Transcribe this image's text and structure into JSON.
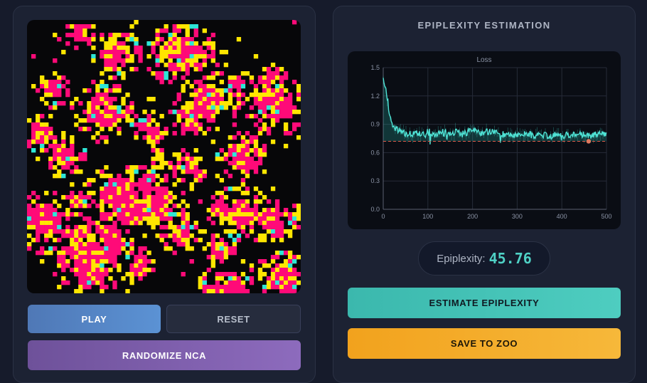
{
  "controls": {
    "play_label": "PLAY",
    "reset_label": "RESET",
    "randomize_label": "RANDOMIZE NCA"
  },
  "grid": {
    "colors": {
      "empty": "#070709",
      "state_a": "#ff0a78",
      "state_b": "#ffe600",
      "state_c": "#2ee6d6"
    }
  },
  "estimation": {
    "title": "EPIPLEXITY ESTIMATION",
    "epiplexity_label": "Epiplexity:",
    "epiplexity_value": "45.76",
    "estimate_label": "ESTIMATE EPIPLEXITY",
    "save_label": "SAVE TO ZOO"
  },
  "colors": {
    "accent_teal": "#4fd1c5",
    "accent_orange": "#f6b83a",
    "accent_purple": "#8d6bbd",
    "accent_blue": "#5b92d4"
  },
  "chart_data": {
    "type": "line",
    "title": "Loss",
    "xlabel": "",
    "ylabel": "",
    "xlim": [
      0,
      500
    ],
    "ylim": [
      0,
      1.5
    ],
    "x_ticks": [
      0,
      100,
      200,
      300,
      400,
      500
    ],
    "y_ticks": [
      0.0,
      0.3,
      0.6,
      0.9,
      1.2,
      1.5
    ],
    "y_tick_labels": [
      "0.0",
      "0.3",
      "0.6",
      "0.9",
      "1.2",
      "1.5"
    ],
    "grid": true,
    "baseline": 0.72,
    "series": [
      {
        "x": [
          0,
          5,
          10,
          15,
          20,
          25,
          30,
          40,
          50,
          60,
          70,
          80,
          90,
          100,
          120,
          140,
          160,
          180,
          200,
          220,
          240,
          260,
          280,
          300,
          320,
          340,
          360,
          380,
          400,
          420,
          440,
          460,
          480,
          500
        ],
        "y": [
          1.38,
          1.3,
          1.1,
          0.98,
          0.9,
          0.87,
          0.85,
          0.82,
          0.8,
          0.8,
          0.79,
          0.81,
          0.8,
          0.79,
          0.8,
          0.81,
          0.82,
          0.8,
          0.84,
          0.81,
          0.82,
          0.8,
          0.79,
          0.79,
          0.8,
          0.78,
          0.78,
          0.79,
          0.78,
          0.79,
          0.8,
          0.78,
          0.79,
          0.8
        ]
      }
    ],
    "marker": {
      "x": 460,
      "y": 0.72
    }
  }
}
